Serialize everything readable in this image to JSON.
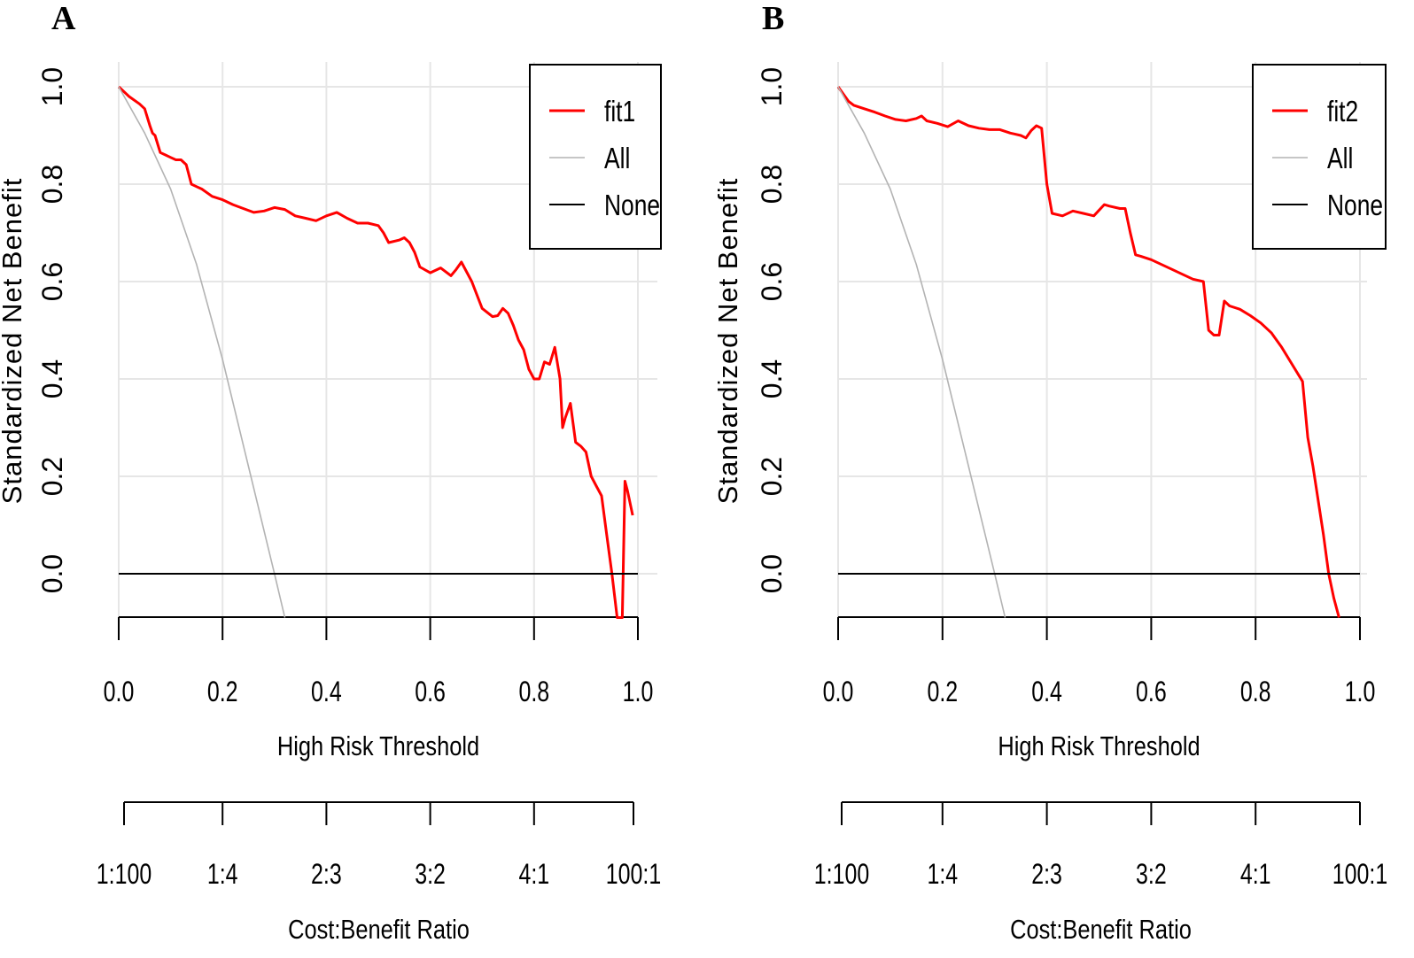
{
  "chart_data": [
    {
      "type": "line",
      "panel_label": "A",
      "xlabel": "High Risk Threshold",
      "ylabel": "Standardized Net Benefit",
      "xlim": [
        0,
        1
      ],
      "ylim": [
        -0.09,
        1
      ],
      "x_ticks": [
        "0.0",
        "0.2",
        "0.4",
        "0.6",
        "0.8",
        "1.0"
      ],
      "y_ticks": [
        "0.0",
        "0.2",
        "0.4",
        "0.6",
        "0.8",
        "1.0"
      ],
      "grid": true,
      "cost_benefit_axis": {
        "title": "Cost:Benefit Ratio",
        "labels": [
          "1:100",
          "1:4",
          "2:3",
          "3:2",
          "4:1",
          "100:1"
        ]
      },
      "legend": {
        "position": "top-right",
        "entries": [
          {
            "label": "fit1",
            "color": "#ff0000"
          },
          {
            "label": "All",
            "color": "#b3b3b3"
          },
          {
            "label": "None",
            "color": "#000000"
          }
        ]
      },
      "series": [
        {
          "name": "fit1",
          "color": "#ff0000",
          "x": [
            0,
            0.02,
            0.04,
            0.05,
            0.06,
            0.065,
            0.07,
            0.08,
            0.09,
            0.1,
            0.11,
            0.12,
            0.13,
            0.14,
            0.15,
            0.16,
            0.18,
            0.2,
            0.22,
            0.24,
            0.26,
            0.28,
            0.3,
            0.32,
            0.34,
            0.36,
            0.38,
            0.4,
            0.42,
            0.44,
            0.46,
            0.48,
            0.5,
            0.51,
            0.52,
            0.54,
            0.55,
            0.56,
            0.57,
            0.58,
            0.6,
            0.62,
            0.64,
            0.65,
            0.66,
            0.68,
            0.7,
            0.72,
            0.73,
            0.74,
            0.75,
            0.76,
            0.77,
            0.78,
            0.79,
            0.8,
            0.81,
            0.82,
            0.83,
            0.84,
            0.85,
            0.855,
            0.86,
            0.87,
            0.88,
            0.89,
            0.9,
            0.91,
            0.92,
            0.93,
            0.94,
            0.95,
            0.96,
            0.965,
            0.97,
            0.975,
            0.98,
            0.99
          ],
          "values": [
            1.0,
            0.98,
            0.965,
            0.955,
            0.92,
            0.905,
            0.9,
            0.865,
            0.86,
            0.855,
            0.85,
            0.85,
            0.84,
            0.8,
            0.795,
            0.79,
            0.775,
            0.768,
            0.758,
            0.75,
            0.742,
            0.745,
            0.752,
            0.748,
            0.735,
            0.73,
            0.725,
            0.735,
            0.742,
            0.73,
            0.72,
            0.72,
            0.715,
            0.7,
            0.68,
            0.685,
            0.69,
            0.68,
            0.66,
            0.63,
            0.618,
            0.628,
            0.612,
            0.625,
            0.64,
            0.6,
            0.545,
            0.528,
            0.53,
            0.545,
            0.535,
            0.51,
            0.48,
            0.46,
            0.42,
            0.4,
            0.4,
            0.435,
            0.43,
            0.465,
            0.4,
            0.3,
            0.32,
            0.35,
            0.27,
            0.262,
            0.25,
            0.2,
            0.18,
            0.16,
            0.08,
            0.0,
            -0.09,
            -0.09,
            -0.09,
            0.19,
            0.17,
            0.12
          ]
        },
        {
          "name": "All",
          "color": "#b3b3b3",
          "x": [
            0,
            0.05,
            0.1,
            0.15,
            0.2,
            0.25,
            0.3,
            0.32
          ],
          "values": [
            1.0,
            0.905,
            0.79,
            0.635,
            0.44,
            0.22,
            0.0,
            -0.09
          ]
        },
        {
          "name": "None",
          "color": "#000000",
          "x": [
            0,
            1
          ],
          "values": [
            0,
            0
          ]
        }
      ]
    },
    {
      "type": "line",
      "panel_label": "B",
      "xlabel": "High Risk Threshold",
      "ylabel": "Standardized Net Benefit",
      "xlim": [
        0,
        1
      ],
      "ylim": [
        -0.09,
        1
      ],
      "x_ticks": [
        "0.0",
        "0.2",
        "0.4",
        "0.6",
        "0.8",
        "1.0"
      ],
      "y_ticks": [
        "0.0",
        "0.2",
        "0.4",
        "0.6",
        "0.8",
        "1.0"
      ],
      "grid": true,
      "cost_benefit_axis": {
        "title": "Cost:Benefit Ratio",
        "labels": [
          "1:100",
          "1:4",
          "2:3",
          "3:2",
          "4:1",
          "100:1"
        ]
      },
      "legend": {
        "position": "top-right",
        "entries": [
          {
            "label": "fit2",
            "color": "#ff0000"
          },
          {
            "label": "All",
            "color": "#b3b3b3"
          },
          {
            "label": "None",
            "color": "#000000"
          }
        ]
      },
      "series": [
        {
          "name": "fit2",
          "color": "#ff0000",
          "x": [
            0,
            0.01,
            0.02,
            0.03,
            0.05,
            0.07,
            0.09,
            0.11,
            0.13,
            0.15,
            0.16,
            0.17,
            0.19,
            0.21,
            0.23,
            0.25,
            0.27,
            0.29,
            0.31,
            0.33,
            0.35,
            0.36,
            0.37,
            0.38,
            0.39,
            0.4,
            0.41,
            0.43,
            0.45,
            0.47,
            0.49,
            0.51,
            0.52,
            0.54,
            0.55,
            0.56,
            0.57,
            0.58,
            0.6,
            0.62,
            0.64,
            0.66,
            0.68,
            0.7,
            0.71,
            0.72,
            0.73,
            0.74,
            0.75,
            0.77,
            0.79,
            0.81,
            0.83,
            0.85,
            0.87,
            0.89,
            0.9,
            0.91,
            0.92,
            0.93,
            0.94,
            0.95,
            0.96
          ],
          "values": [
            1.0,
            0.985,
            0.97,
            0.962,
            0.955,
            0.948,
            0.94,
            0.933,
            0.93,
            0.935,
            0.94,
            0.93,
            0.925,
            0.918,
            0.93,
            0.92,
            0.915,
            0.912,
            0.912,
            0.905,
            0.9,
            0.895,
            0.91,
            0.92,
            0.915,
            0.8,
            0.74,
            0.735,
            0.745,
            0.74,
            0.735,
            0.758,
            0.755,
            0.75,
            0.75,
            0.7,
            0.655,
            0.652,
            0.645,
            0.635,
            0.625,
            0.615,
            0.605,
            0.6,
            0.5,
            0.49,
            0.49,
            0.56,
            0.55,
            0.543,
            0.53,
            0.515,
            0.495,
            0.465,
            0.43,
            0.395,
            0.28,
            0.22,
            0.15,
            0.08,
            0.0,
            -0.05,
            -0.09
          ]
        },
        {
          "name": "All",
          "color": "#b3b3b3",
          "x": [
            0,
            0.05,
            0.1,
            0.15,
            0.2,
            0.25,
            0.3,
            0.32
          ],
          "values": [
            1.0,
            0.905,
            0.79,
            0.635,
            0.44,
            0.22,
            0.0,
            -0.09
          ]
        },
        {
          "name": "None",
          "color": "#000000",
          "x": [
            0,
            1
          ],
          "values": [
            0,
            0
          ]
        }
      ]
    }
  ]
}
